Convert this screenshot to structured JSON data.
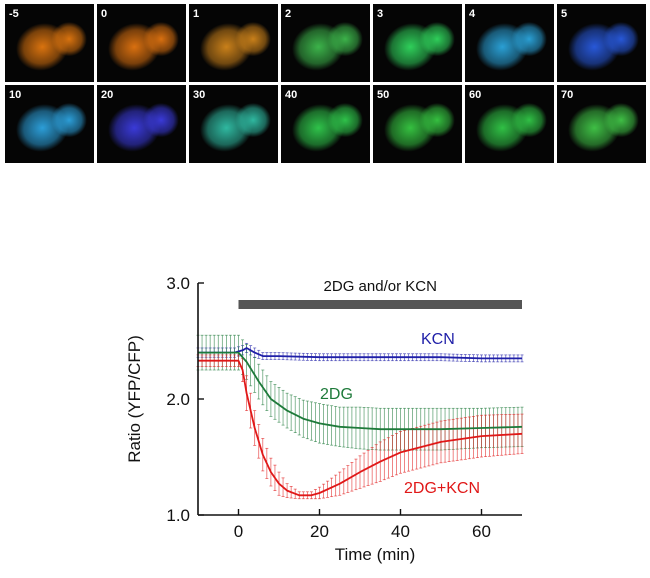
{
  "image_panels": {
    "rows": [
      [
        {
          "label": "-5",
          "color": "#d9730f"
        },
        {
          "label": "0",
          "color": "#d97010"
        },
        {
          "label": "1",
          "color": "#c9801a"
        },
        {
          "label": "2",
          "color": "#3cb34a"
        },
        {
          "label": "3",
          "color": "#2fcf5a"
        },
        {
          "label": "4",
          "color": "#2a9fd4"
        },
        {
          "label": "5",
          "color": "#2858d8"
        }
      ],
      [
        {
          "label": "10",
          "color": "#2c9ed8"
        },
        {
          "label": "20",
          "color": "#3a3ad8"
        },
        {
          "label": "30",
          "color": "#2fb8a0"
        },
        {
          "label": "40",
          "color": "#2fc24a"
        },
        {
          "label": "50",
          "color": "#35c040"
        },
        {
          "label": "60",
          "color": "#30c045"
        },
        {
          "label": "70",
          "color": "#3fbf45"
        }
      ]
    ]
  },
  "chart_data": {
    "type": "line",
    "xlabel": "Time (min)",
    "ylabel": "Ratio (YFP/CFP)",
    "xlim": [
      -10,
      70
    ],
    "ylim": [
      1.0,
      3.0
    ],
    "xticks": [
      0,
      20,
      40,
      60
    ],
    "yticks": [
      "1.0",
      "2.0",
      "3.0"
    ],
    "treatment_bar": {
      "label": "2DG and/or KCN",
      "start": 0,
      "end": 70,
      "color": "#555555"
    },
    "series": [
      {
        "name": "KCN",
        "color": "#1f1fa8",
        "x": [
          -10,
          -5,
          -1,
          1,
          2,
          4,
          6,
          10,
          20,
          30,
          40,
          50,
          60,
          70
        ],
        "y": [
          2.4,
          2.4,
          2.4,
          2.42,
          2.44,
          2.4,
          2.37,
          2.37,
          2.36,
          2.36,
          2.36,
          2.36,
          2.35,
          2.35
        ],
        "err": [
          0.04,
          0.04,
          0.04,
          0.04,
          0.04,
          0.04,
          0.03,
          0.03,
          0.03,
          0.03,
          0.03,
          0.03,
          0.03,
          0.03
        ]
      },
      {
        "name": "2DG",
        "color": "#1e7a3a",
        "x": [
          -10,
          -5,
          0,
          2,
          5,
          8,
          12,
          16,
          20,
          25,
          30,
          35,
          40,
          50,
          60,
          70
        ],
        "y": [
          2.4,
          2.4,
          2.4,
          2.32,
          2.15,
          2.0,
          1.9,
          1.83,
          1.79,
          1.76,
          1.75,
          1.74,
          1.74,
          1.74,
          1.75,
          1.76
        ],
        "err": [
          0.15,
          0.15,
          0.15,
          0.15,
          0.15,
          0.15,
          0.15,
          0.16,
          0.17,
          0.17,
          0.18,
          0.18,
          0.18,
          0.18,
          0.17,
          0.17
        ]
      },
      {
        "name": "2DG+KCN",
        "color": "#e01818",
        "x": [
          -10,
          -5,
          0,
          1,
          2,
          4,
          6,
          8,
          10,
          12,
          15,
          18,
          20,
          25,
          30,
          35,
          40,
          50,
          60,
          70
        ],
        "y": [
          2.33,
          2.33,
          2.33,
          2.25,
          2.05,
          1.75,
          1.52,
          1.37,
          1.27,
          1.21,
          1.17,
          1.17,
          1.19,
          1.27,
          1.37,
          1.46,
          1.54,
          1.63,
          1.68,
          1.7
        ],
        "err": [
          0.05,
          0.05,
          0.05,
          0.1,
          0.15,
          0.15,
          0.14,
          0.12,
          0.1,
          0.06,
          0.03,
          0.03,
          0.05,
          0.1,
          0.14,
          0.17,
          0.18,
          0.18,
          0.18,
          0.17
        ]
      }
    ]
  }
}
